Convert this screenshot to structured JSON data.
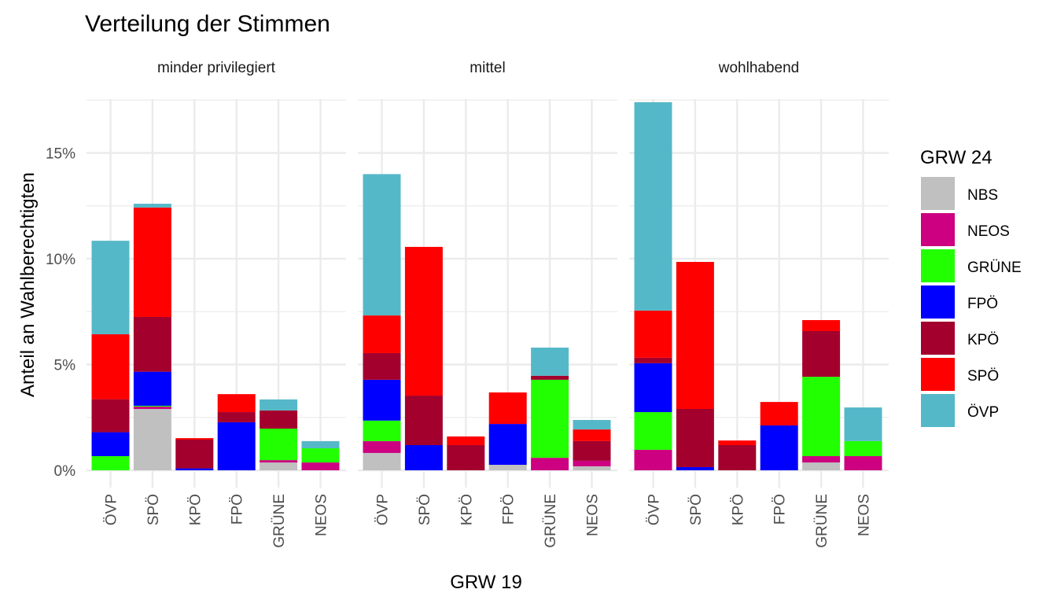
{
  "chart_data": {
    "type": "bar",
    "stacked": true,
    "title": "Verteilung der Stimmen",
    "xlabel": "GRW 19",
    "ylabel": "Anteil an Wahlberechtigten",
    "ylim": [
      0,
      18
    ],
    "yticks": [
      0,
      5,
      10,
      15
    ],
    "ytick_labels": [
      "0%",
      "5%",
      "10%",
      "15%"
    ],
    "grid": true,
    "legend": {
      "title": "GRW 24",
      "placement": "right",
      "entries": [
        "NBS",
        "NEOS",
        "GRÜNE",
        "FPÖ",
        "KPÖ",
        "SPÖ",
        "ÖVP"
      ]
    },
    "stack_order": [
      "NBS",
      "NEOS",
      "GRÜNE",
      "FPÖ",
      "KPÖ",
      "SPÖ",
      "ÖVP"
    ],
    "colors": {
      "NBS": "#C0C0C0",
      "NEOS": "#CC0080",
      "GRÜNE": "#22FF00",
      "FPÖ": "#0000FF",
      "KPÖ": "#A3002D",
      "SPÖ": "#FF0000",
      "ÖVP": "#55B8C8"
    },
    "categories": [
      "ÖVP",
      "SPÖ",
      "KPÖ",
      "FPÖ",
      "GRÜNE",
      "NEOS"
    ],
    "facets": [
      {
        "label": "minder privilegiert",
        "bars": [
          {
            "NBS": 0,
            "NEOS": 0,
            "GRÜNE": 0.67,
            "FPÖ": 1.13,
            "KPÖ": 1.56,
            "SPÖ": 3.07,
            "ÖVP": 4.42
          },
          {
            "NBS": 2.9,
            "NEOS": 0.11,
            "GRÜNE": 0.04,
            "FPÖ": 1.61,
            "KPÖ": 2.59,
            "SPÖ": 5.17,
            "ÖVP": 0.18
          },
          {
            "NBS": 0,
            "NEOS": 0,
            "GRÜNE": 0,
            "FPÖ": 0.09,
            "KPÖ": 1.36,
            "SPÖ": 0.07,
            "ÖVP": 0
          },
          {
            "NBS": 0,
            "NEOS": 0,
            "GRÜNE": 0,
            "FPÖ": 2.27,
            "KPÖ": 0.48,
            "SPÖ": 0.85,
            "ÖVP": 0
          },
          {
            "NBS": 0.37,
            "NEOS": 0.11,
            "GRÜNE": 1.49,
            "FPÖ": 0,
            "KPÖ": 0.86,
            "SPÖ": 0,
            "ÖVP": 0.52
          },
          {
            "NBS": 0,
            "NEOS": 0.37,
            "GRÜNE": 0.67,
            "FPÖ": 0,
            "KPÖ": 0,
            "SPÖ": 0,
            "ÖVP": 0.34
          }
        ]
      },
      {
        "label": "mittel",
        "bars": [
          {
            "NBS": 0.82,
            "NEOS": 0.56,
            "GRÜNE": 0.97,
            "FPÖ": 1.93,
            "KPÖ": 1.26,
            "SPÖ": 1.78,
            "ÖVP": 6.68
          },
          {
            "NBS": 0,
            "NEOS": 0,
            "GRÜNE": 0,
            "FPÖ": 1.19,
            "KPÖ": 2.34,
            "SPÖ": 7.03,
            "ÖVP": 0
          },
          {
            "NBS": 0,
            "NEOS": 0,
            "GRÜNE": 0,
            "FPÖ": 0,
            "KPÖ": 1.19,
            "SPÖ": 0.41,
            "ÖVP": 0
          },
          {
            "NBS": 0.26,
            "NEOS": 0,
            "GRÜNE": 0,
            "FPÖ": 1.93,
            "KPÖ": 0,
            "SPÖ": 1.49,
            "ÖVP": 0
          },
          {
            "NBS": 0,
            "NEOS": 0.59,
            "GRÜNE": 3.69,
            "FPÖ": 0,
            "KPÖ": 0.19,
            "SPÖ": 0,
            "ÖVP": 1.33
          },
          {
            "NBS": 0.19,
            "NEOS": 0.26,
            "GRÜNE": 0,
            "FPÖ": 0,
            "KPÖ": 0.93,
            "SPÖ": 0.55,
            "ÖVP": 0.45
          }
        ]
      },
      {
        "label": "wohlhabend",
        "bars": [
          {
            "NBS": 0,
            "NEOS": 0.97,
            "GRÜNE": 1.78,
            "FPÖ": 2.31,
            "KPÖ": 0.26,
            "SPÖ": 2.23,
            "ÖVP": 9.85
          },
          {
            "NBS": 0,
            "NEOS": 0,
            "GRÜNE": 0,
            "FPÖ": 0.15,
            "KPÖ": 2.75,
            "SPÖ": 6.95,
            "ÖVP": 0
          },
          {
            "NBS": 0,
            "NEOS": 0,
            "GRÜNE": 0,
            "FPÖ": 0,
            "KPÖ": 1.19,
            "SPÖ": 0.22,
            "ÖVP": 0
          },
          {
            "NBS": 0,
            "NEOS": 0,
            "GRÜNE": 0,
            "FPÖ": 2.12,
            "KPÖ": 0,
            "SPÖ": 1.11,
            "ÖVP": 0
          },
          {
            "NBS": 0.37,
            "NEOS": 0.3,
            "GRÜNE": 3.75,
            "FPÖ": 0,
            "KPÖ": 2.16,
            "SPÖ": 0.52,
            "ÖVP": 0
          },
          {
            "NBS": 0,
            "NEOS": 0.67,
            "GRÜNE": 0.71,
            "FPÖ": 0,
            "KPÖ": 0,
            "SPÖ": 0,
            "ÖVP": 1.59
          }
        ]
      }
    ]
  }
}
